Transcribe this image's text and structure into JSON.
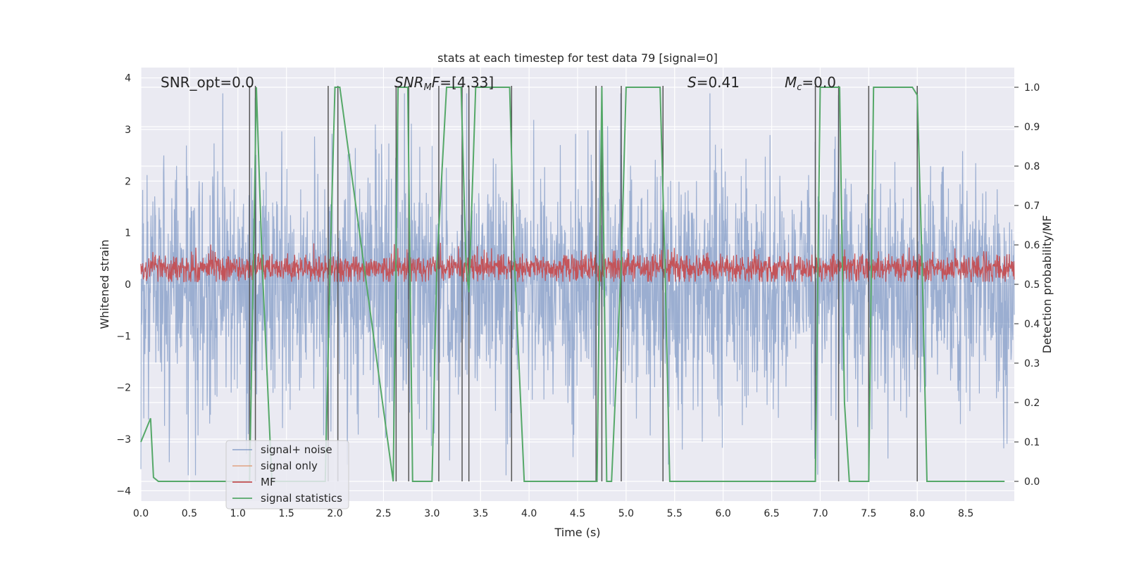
{
  "chart_data": {
    "type": "line",
    "title": "stats at each timestep for test data 79 [signal=0]",
    "xlabel": "Time (s)",
    "ylabel": "Whitened strain",
    "y2label": "Detection probability/MF",
    "xlim": [
      0,
      9
    ],
    "ylim": [
      -4.2,
      4.2
    ],
    "y2lim": [
      -0.05,
      1.05
    ],
    "grid": true,
    "legend_position": "lower-left",
    "x_ticks": [
      "0.0",
      "0.5",
      "1.0",
      "1.5",
      "2.0",
      "2.5",
      "3.0",
      "3.5",
      "4.0",
      "4.5",
      "5.0",
      "5.5",
      "6.0",
      "6.5",
      "7.0",
      "7.5",
      "8.0",
      "8.5"
    ],
    "y_ticks": [
      "4",
      "3",
      "2",
      "1",
      "0",
      "−1",
      "−2",
      "−3",
      "−4"
    ],
    "y2_ticks": [
      "1.0",
      "0.9",
      "0.8",
      "0.7",
      "0.6",
      "0.5",
      "0.4",
      "0.3",
      "0.2",
      "0.1",
      "0.0"
    ],
    "annotations": {
      "snr_opt": "SNR_opt=0.0",
      "snr_mf_main": "SNR",
      "snr_mf_sub": "M",
      "snr_mf_f": "F",
      "snr_mf_val": "=[4.33]",
      "s_main": "S",
      "s_val": "=0.41",
      "mc_main": "M",
      "mc_sub": "c",
      "mc_val": "=0.0"
    },
    "series": [
      {
        "name": "signal+ noise",
        "color": "#4c72b0",
        "noise_sigma": 1.2,
        "range": [
          -3.7,
          3.7
        ]
      },
      {
        "name": "signal only",
        "color": "#dd8452"
      },
      {
        "name": "MF",
        "color": "#c44e52",
        "mean": 0.32,
        "range": [
          0.05,
          0.95
        ]
      },
      {
        "name": "signal statistics",
        "color": "#55a868",
        "x": [
          0.0,
          0.05,
          0.1,
          0.13,
          0.18,
          1.12,
          1.17,
          1.19,
          1.25,
          1.35,
          1.9,
          1.95,
          2.0,
          2.05,
          2.6,
          2.65,
          2.75,
          2.8,
          3.0,
          3.05,
          3.15,
          3.3,
          3.35,
          3.38,
          3.45,
          3.8,
          3.85,
          3.95,
          4.7,
          4.75,
          4.8,
          4.85,
          4.95,
          5.0,
          5.35,
          5.4,
          5.45,
          6.95,
          7.0,
          7.2,
          7.25,
          7.3,
          7.5,
          7.55,
          7.95,
          8.0,
          8.05,
          8.1,
          8.15,
          8.9
        ],
        "values": [
          0.1,
          0.13,
          0.16,
          0.01,
          0.0,
          0.0,
          0.7,
          1.0,
          0.55,
          0.0,
          0.0,
          0.55,
          1.0,
          1.0,
          0.0,
          1.0,
          1.0,
          0.0,
          0.0,
          0.55,
          1.0,
          1.0,
          0.55,
          0.48,
          1.0,
          1.0,
          0.55,
          0.0,
          0.0,
          1.0,
          0.0,
          0.0,
          0.55,
          1.0,
          1.0,
          0.55,
          0.0,
          0.0,
          1.0,
          1.0,
          0.2,
          0.0,
          0.0,
          1.0,
          1.0,
          0.98,
          0.55,
          0.0,
          0.0,
          0.0
        ]
      }
    ],
    "vlines_x": [
      1.12,
      1.18,
      1.93,
      2.03,
      2.63,
      2.76,
      3.07,
      3.31,
      3.38,
      3.82,
      4.69,
      4.75,
      4.95,
      5.38,
      6.95,
      7.19,
      7.5,
      8.0
    ]
  }
}
